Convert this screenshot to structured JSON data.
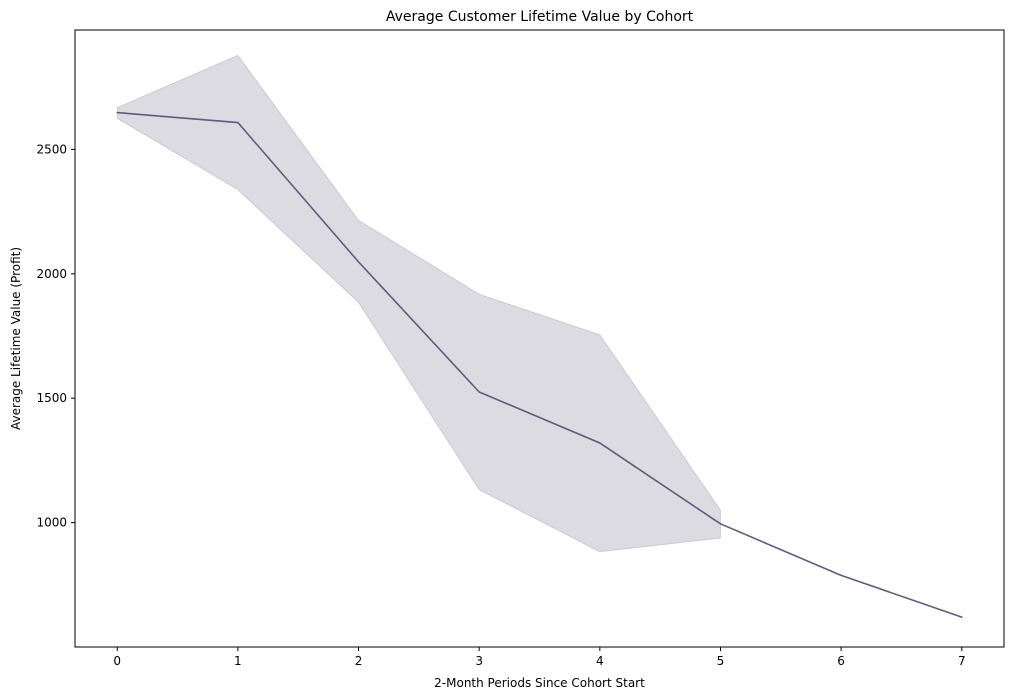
{
  "chart_data": {
    "type": "line",
    "title": "Average Customer Lifetime Value by Cohort",
    "xlabel": "2-Month Periods Since Cohort Start",
    "ylabel": "Average Lifetime Value (Profit)",
    "x": [
      0,
      1,
      2,
      3,
      4,
      5,
      6,
      7
    ],
    "x_ticks": [
      0,
      1,
      2,
      3,
      4,
      5,
      6,
      7
    ],
    "y_ticks": [
      1000,
      1500,
      2000,
      2500
    ],
    "xlim": [
      -0.35,
      7.35
    ],
    "ylim": [
      500,
      2980
    ],
    "grid": false,
    "series": [
      {
        "values": [
          2648,
          2608,
          2048,
          1525,
          1320,
          995,
          788,
          620
        ],
        "ci_lower": [
          2625,
          2338,
          1885,
          1132,
          883,
          938,
          null,
          null
        ],
        "ci_upper": [
          2668,
          2878,
          2215,
          1918,
          1755,
          1050,
          null,
          null
        ],
        "color": "#5e5c7d",
        "band_color": "#5e5c7d"
      }
    ]
  }
}
